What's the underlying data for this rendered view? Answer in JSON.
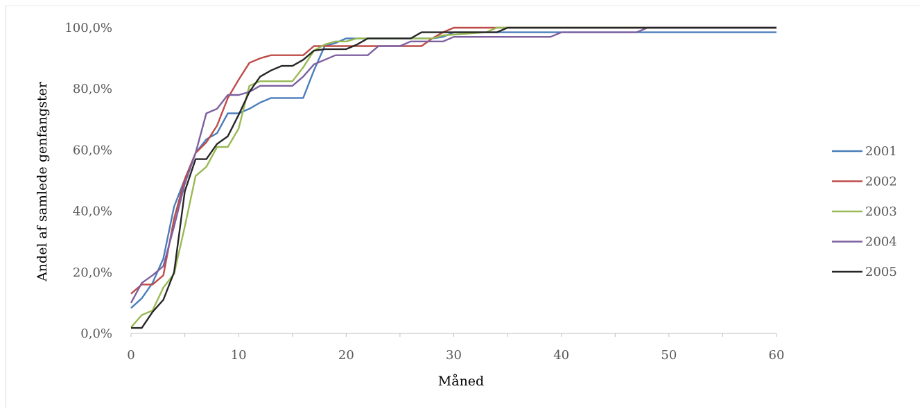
{
  "chart_data": {
    "type": "line",
    "title": "",
    "xlabel": "Måned",
    "ylabel": "Andel af samlede genfangster",
    "xlim": [
      0,
      60
    ],
    "ylim": [
      0,
      1
    ],
    "x_ticks": [
      "0",
      "10",
      "20",
      "30",
      "40",
      "50",
      "60"
    ],
    "y_ticks": [
      "0,0%",
      "20,0%",
      "40,0%",
      "60,0%",
      "80,0%",
      "100,0%"
    ],
    "grid": false,
    "legend_position": "right",
    "series": [
      {
        "name": "2001",
        "color": "#4a7ebb",
        "points": [
          [
            0,
            0.083
          ],
          [
            1,
            0.115
          ],
          [
            2,
            0.165
          ],
          [
            3,
            0.245
          ],
          [
            4,
            0.415
          ],
          [
            5,
            0.505
          ],
          [
            6,
            0.59
          ],
          [
            7,
            0.635
          ],
          [
            8,
            0.655
          ],
          [
            9,
            0.72
          ],
          [
            10,
            0.72
          ],
          [
            11,
            0.735
          ],
          [
            12,
            0.755
          ],
          [
            13,
            0.77
          ],
          [
            14,
            0.77
          ],
          [
            15,
            0.77
          ],
          [
            16,
            0.77
          ],
          [
            17,
            0.86
          ],
          [
            18,
            0.94
          ],
          [
            19,
            0.95
          ],
          [
            20,
            0.965
          ],
          [
            21,
            0.965
          ],
          [
            22,
            0.965
          ],
          [
            25,
            0.965
          ],
          [
            28,
            0.965
          ],
          [
            29,
            0.97
          ],
          [
            30,
            0.985
          ],
          [
            60,
            0.985
          ]
        ]
      },
      {
        "name": "2002",
        "color": "#be4b48",
        "points": [
          [
            0,
            0.13
          ],
          [
            1,
            0.16
          ],
          [
            2,
            0.16
          ],
          [
            3,
            0.19
          ],
          [
            4,
            0.375
          ],
          [
            5,
            0.505
          ],
          [
            6,
            0.59
          ],
          [
            7,
            0.625
          ],
          [
            8,
            0.68
          ],
          [
            9,
            0.77
          ],
          [
            10,
            0.83
          ],
          [
            11,
            0.885
          ],
          [
            12,
            0.9
          ],
          [
            13,
            0.91
          ],
          [
            14,
            0.91
          ],
          [
            15,
            0.91
          ],
          [
            16,
            0.91
          ],
          [
            17,
            0.94
          ],
          [
            18,
            0.94
          ],
          [
            19,
            0.94
          ],
          [
            25,
            0.94
          ],
          [
            27,
            0.94
          ],
          [
            28,
            0.965
          ],
          [
            29,
            0.985
          ],
          [
            30,
            1.0
          ],
          [
            60,
            1.0
          ]
        ]
      },
      {
        "name": "2003",
        "color": "#98b954",
        "points": [
          [
            0,
            0.02
          ],
          [
            1,
            0.06
          ],
          [
            2,
            0.075
          ],
          [
            3,
            0.15
          ],
          [
            4,
            0.195
          ],
          [
            5,
            0.35
          ],
          [
            6,
            0.515
          ],
          [
            7,
            0.545
          ],
          [
            8,
            0.61
          ],
          [
            9,
            0.61
          ],
          [
            10,
            0.67
          ],
          [
            11,
            0.81
          ],
          [
            12,
            0.825
          ],
          [
            13,
            0.825
          ],
          [
            14,
            0.825
          ],
          [
            15,
            0.825
          ],
          [
            16,
            0.87
          ],
          [
            17,
            0.925
          ],
          [
            18,
            0.945
          ],
          [
            19,
            0.955
          ],
          [
            20,
            0.955
          ],
          [
            21,
            0.965
          ],
          [
            22,
            0.965
          ],
          [
            25,
            0.965
          ],
          [
            28,
            0.965
          ],
          [
            29,
            0.975
          ],
          [
            33,
            0.985
          ],
          [
            34,
            1.0
          ],
          [
            60,
            1.0
          ]
        ]
      },
      {
        "name": "2004",
        "color": "#7d60a0",
        "points": [
          [
            0,
            0.1
          ],
          [
            1,
            0.165
          ],
          [
            2,
            0.19
          ],
          [
            3,
            0.22
          ],
          [
            4,
            0.35
          ],
          [
            5,
            0.49
          ],
          [
            6,
            0.59
          ],
          [
            7,
            0.72
          ],
          [
            8,
            0.735
          ],
          [
            9,
            0.78
          ],
          [
            10,
            0.78
          ],
          [
            11,
            0.79
          ],
          [
            12,
            0.81
          ],
          [
            13,
            0.81
          ],
          [
            15,
            0.81
          ],
          [
            16,
            0.84
          ],
          [
            17,
            0.88
          ],
          [
            18,
            0.895
          ],
          [
            19,
            0.91
          ],
          [
            20,
            0.91
          ],
          [
            21,
            0.91
          ],
          [
            22,
            0.91
          ],
          [
            23,
            0.94
          ],
          [
            25,
            0.94
          ],
          [
            26,
            0.955
          ],
          [
            29,
            0.955
          ],
          [
            30,
            0.97
          ],
          [
            39,
            0.97
          ],
          [
            40,
            0.985
          ],
          [
            47,
            0.985
          ],
          [
            48,
            1.0
          ],
          [
            60,
            1.0
          ]
        ]
      },
      {
        "name": "2005",
        "color": "#262626",
        "points": [
          [
            0,
            0.018
          ],
          [
            1,
            0.018
          ],
          [
            2,
            0.07
          ],
          [
            3,
            0.11
          ],
          [
            4,
            0.2
          ],
          [
            5,
            0.465
          ],
          [
            6,
            0.57
          ],
          [
            7,
            0.57
          ],
          [
            8,
            0.62
          ],
          [
            9,
            0.645
          ],
          [
            10,
            0.715
          ],
          [
            11,
            0.79
          ],
          [
            12,
            0.84
          ],
          [
            13,
            0.86
          ],
          [
            14,
            0.875
          ],
          [
            15,
            0.875
          ],
          [
            16,
            0.895
          ],
          [
            17,
            0.925
          ],
          [
            18,
            0.93
          ],
          [
            19,
            0.93
          ],
          [
            20,
            0.93
          ],
          [
            21,
            0.945
          ],
          [
            22,
            0.965
          ],
          [
            26,
            0.965
          ],
          [
            27,
            0.985
          ],
          [
            33,
            0.985
          ],
          [
            34,
            0.985
          ],
          [
            35,
            1.0
          ],
          [
            60,
            1.0
          ]
        ]
      }
    ]
  }
}
